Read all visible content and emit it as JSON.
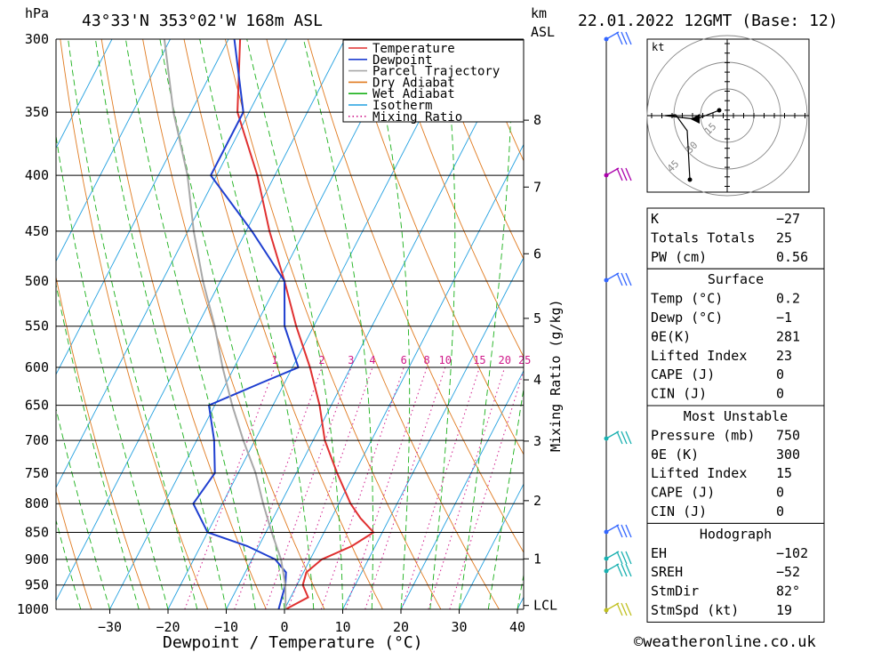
{
  "header": {
    "pressure_unit": "hPa",
    "location": "43°33'N 353°02'W 168m ASL",
    "km_label": "km",
    "asl_label": "ASL",
    "datetime": "22.01.2022 12GMT (Base: 12)"
  },
  "chart_data": {
    "type": "line",
    "subtype": "skew-T log-P diagram",
    "xlabel": "Dewpoint / Temperature (°C)",
    "ylabel": "hPa",
    "right_axis_label": "Mixing Ratio (g/kg)",
    "xlim": [
      -40,
      40
    ],
    "ylim": [
      1000,
      300
    ],
    "x_ticks": [
      -30,
      -20,
      -10,
      0,
      10,
      20,
      30,
      40
    ],
    "pressure_levels": [
      300,
      350,
      400,
      450,
      500,
      550,
      600,
      650,
      700,
      750,
      800,
      850,
      900,
      950,
      1000
    ],
    "km_ticks": [
      {
        "km": "8",
        "p": 356
      },
      {
        "km": "7",
        "p": 410
      },
      {
        "km": "6",
        "p": 472
      },
      {
        "km": "5",
        "p": 541
      },
      {
        "km": "4",
        "p": 616
      },
      {
        "km": "3",
        "p": 701
      },
      {
        "km": "2",
        "p": 795
      },
      {
        "km": "1",
        "p": 899
      },
      {
        "km": "LCL",
        "p": 992
      }
    ],
    "mixing_ratio_labels": [
      "1",
      "2",
      "3",
      "4",
      "6",
      "8",
      "10",
      "15",
      "20",
      "25"
    ],
    "legend": [
      "Temperature",
      "Dewpoint",
      "Parcel Trajectory",
      "Dry Adiabat",
      "Wet Adiabat",
      "Isotherm",
      "Mixing Ratio"
    ],
    "series": [
      {
        "name": "Temperature",
        "color": "#e03030",
        "points": [
          [
            1000,
            0.2
          ],
          [
            975,
            3
          ],
          [
            950,
            1
          ],
          [
            925,
            0.5
          ],
          [
            900,
            2
          ],
          [
            875,
            6
          ],
          [
            850,
            8.5
          ],
          [
            825,
            5
          ],
          [
            800,
            2
          ],
          [
            750,
            -3
          ],
          [
            700,
            -8
          ],
          [
            650,
            -12
          ],
          [
            600,
            -17
          ],
          [
            550,
            -23
          ],
          [
            500,
            -29
          ],
          [
            450,
            -36
          ],
          [
            400,
            -43
          ],
          [
            350,
            -52
          ],
          [
            300,
            -58
          ]
        ]
      },
      {
        "name": "Dewpoint",
        "color": "#1f3fd0",
        "points": [
          [
            1000,
            -1
          ],
          [
            975,
            -1.5
          ],
          [
            950,
            -2
          ],
          [
            925,
            -3
          ],
          [
            900,
            -6
          ],
          [
            875,
            -12
          ],
          [
            850,
            -20
          ],
          [
            800,
            -25
          ],
          [
            750,
            -24
          ],
          [
            700,
            -27
          ],
          [
            650,
            -31
          ],
          [
            620,
            -24
          ],
          [
            600,
            -19
          ],
          [
            550,
            -25
          ],
          [
            500,
            -29
          ],
          [
            450,
            -39
          ],
          [
            400,
            -51
          ],
          [
            350,
            -51
          ],
          [
            300,
            -59
          ]
        ]
      },
      {
        "name": "Parcel Trajectory",
        "color": "#a8a8a8",
        "points": [
          [
            1000,
            0.2
          ],
          [
            950,
            -2
          ],
          [
            900,
            -5
          ],
          [
            850,
            -9
          ],
          [
            800,
            -13
          ],
          [
            750,
            -17
          ],
          [
            700,
            -22
          ],
          [
            650,
            -27
          ],
          [
            600,
            -32
          ],
          [
            550,
            -37
          ],
          [
            500,
            -43
          ],
          [
            450,
            -49
          ],
          [
            400,
            -55
          ],
          [
            350,
            -63
          ],
          [
            300,
            -71
          ]
        ]
      }
    ]
  },
  "indices_box": {
    "rows": [
      {
        "label": "K",
        "value": "-27"
      },
      {
        "label": "Totals Totals",
        "value": "25"
      },
      {
        "label": "PW (cm)",
        "value": "0.56"
      }
    ]
  },
  "surface_box": {
    "title": "Surface",
    "rows": [
      {
        "label": "Temp (°C)",
        "value": "0.2"
      },
      {
        "label": "Dewp (°C)",
        "value": "-1"
      },
      {
        "label": "θE(K)",
        "value": "281"
      },
      {
        "label": "Lifted Index",
        "value": "23"
      },
      {
        "label": "CAPE (J)",
        "value": "0"
      },
      {
        "label": "CIN (J)",
        "value": "0"
      }
    ]
  },
  "unstable_box": {
    "title": "Most Unstable",
    "rows": [
      {
        "label": "Pressure (mb)",
        "value": "750"
      },
      {
        "label": "θE (K)",
        "value": "300"
      },
      {
        "label": "Lifted Index",
        "value": "15"
      },
      {
        "label": "CAPE (J)",
        "value": "0"
      },
      {
        "label": "CIN (J)",
        "value": "0"
      }
    ]
  },
  "hodograph_box": {
    "title": "Hodograph",
    "rows": [
      {
        "label": "EH",
        "value": "-102"
      },
      {
        "label": "SREH",
        "value": "-52"
      },
      {
        "label": "StmDir",
        "value": "82°"
      },
      {
        "label": "StmSpd (kt)",
        "value": "19"
      }
    ]
  },
  "hodograph": {
    "unit_label": "kt",
    "ring_labels": [
      "15",
      "30",
      "45"
    ]
  },
  "footer": {
    "copyright": "©weatheronline.co.uk"
  }
}
